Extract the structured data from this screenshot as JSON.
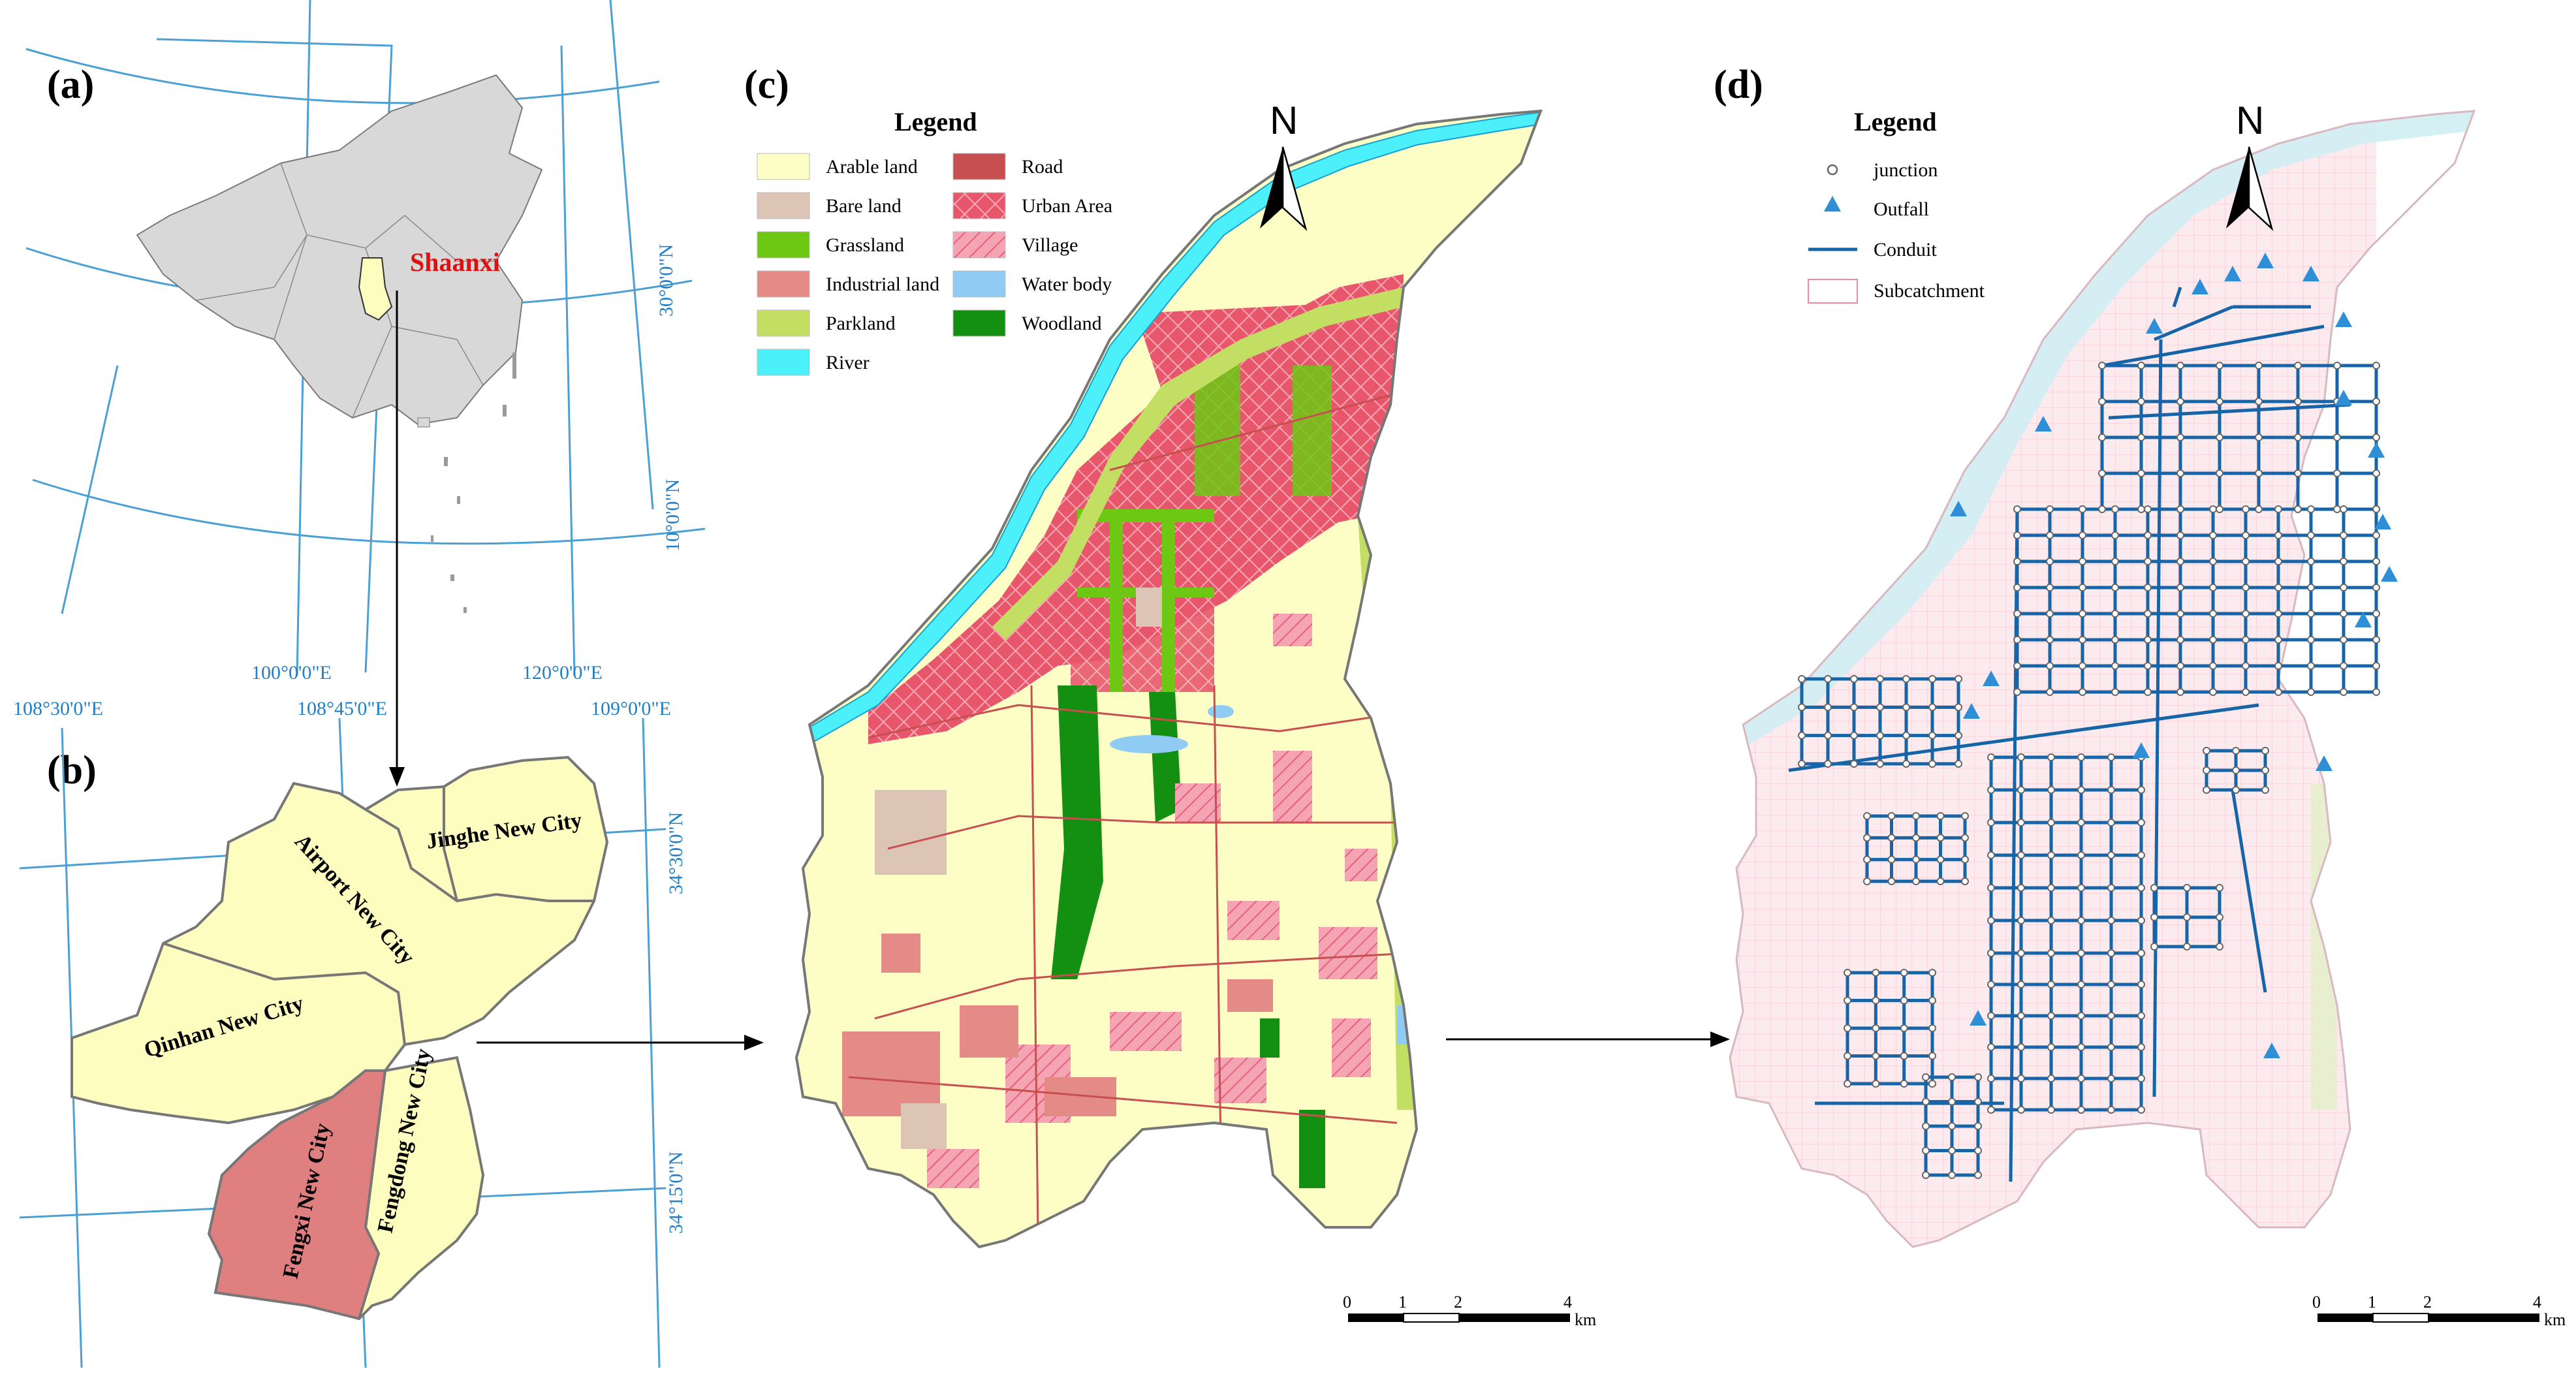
{
  "panels": {
    "a": {
      "label": "(a)",
      "province": "Shaanxi",
      "lat_labels": [
        "30°0'0\"N",
        "10°0'0\"N"
      ],
      "lon_labels": [
        "100°0'0\"E",
        "120°0'0\"E"
      ]
    },
    "b": {
      "label": "(b)",
      "lon_labels": [
        "108°30'0\"E",
        "108°45'0\"E",
        "109°0'0\"E"
      ],
      "lat_labels": [
        "34°30'0\"N",
        "34°15'0\"N"
      ],
      "districts": [
        "Jinghe New City",
        "Airport New City",
        "Qinhan New City",
        "Fengxi New City",
        "Fengdong New City"
      ],
      "colors": {
        "new_city": "#fdfdbf",
        "fengxi": "#e07f80"
      }
    },
    "c": {
      "label": "(c)",
      "legend_title": "Legend",
      "north": "N",
      "legend_items": [
        {
          "label": "Arable land",
          "color": "#fdfdc6"
        },
        {
          "label": "Bare land",
          "color": "#dcc5b4"
        },
        {
          "label": "Grassland",
          "color": "#6dc814"
        },
        {
          "label": "Industrial land",
          "color": "#e48b87"
        },
        {
          "label": "Parkland",
          "color": "#c3df63"
        },
        {
          "label": "River",
          "color": "#4cf0fa"
        },
        {
          "label": "Road",
          "color": "#c84f4f"
        },
        {
          "label": "Urban Area",
          "color": "#e6546a"
        },
        {
          "label": "Village",
          "color": "#f298a8"
        },
        {
          "label": "Water body",
          "color": "#8fcbf2"
        },
        {
          "label": "Woodland",
          "color": "#138f12"
        }
      ],
      "scale": {
        "ticks": [
          "0",
          "1",
          "2",
          "4"
        ],
        "unit": "km"
      }
    },
    "d": {
      "label": "(d)",
      "legend_title": "Legend",
      "north": "N",
      "legend_items": [
        {
          "label": "junction",
          "symbol": "circle"
        },
        {
          "label": "Outfall",
          "symbol": "triangle"
        },
        {
          "label": "Conduit",
          "symbol": "line"
        },
        {
          "label": "Subcatchment",
          "symbol": "rect"
        }
      ],
      "colors": {
        "network": "#1565a8",
        "outfall": "#2e8fd6",
        "subcatchment": "#f08a9a"
      },
      "scale": {
        "ticks": [
          "0",
          "1",
          "2",
          "4"
        ],
        "unit": "km"
      }
    }
  }
}
